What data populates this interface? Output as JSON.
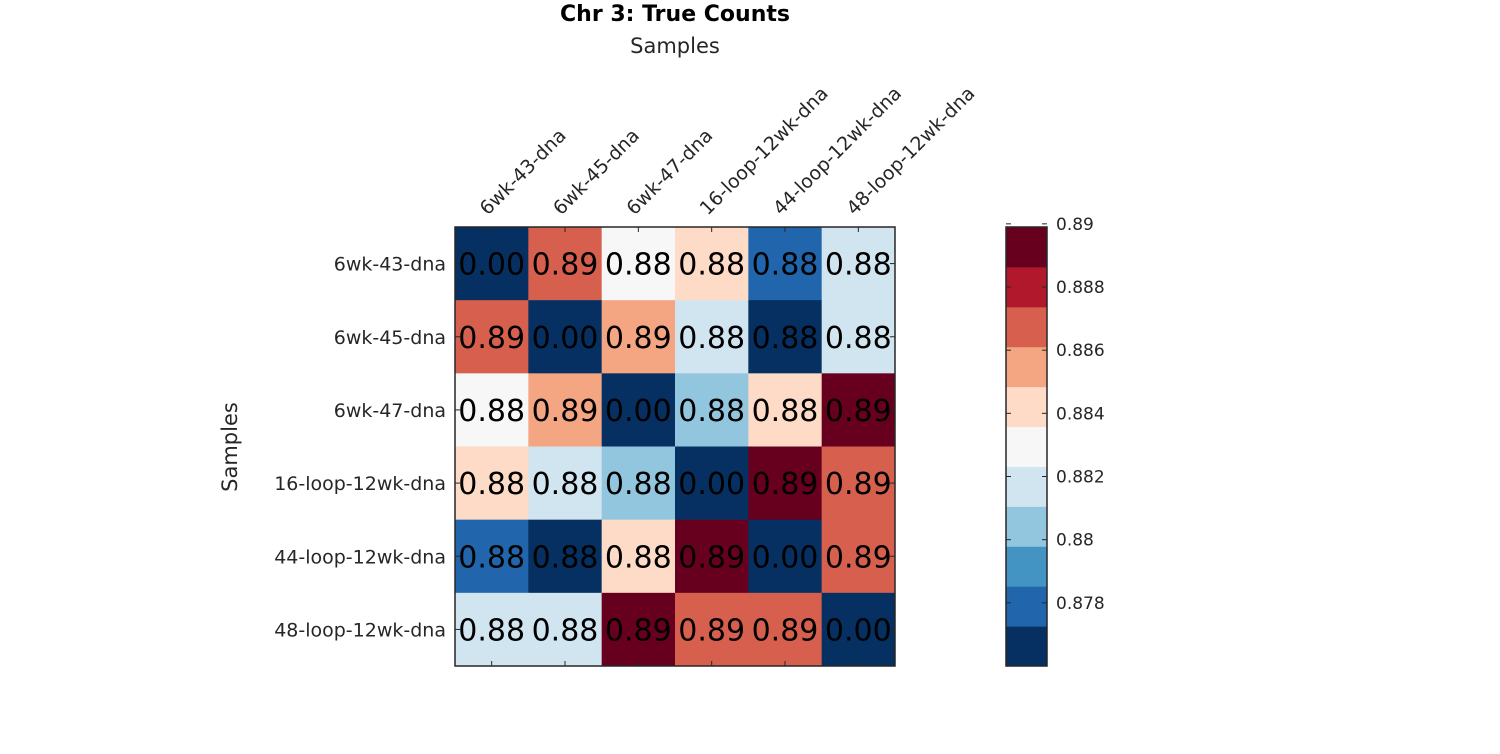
{
  "chart_data": {
    "type": "heatmap",
    "title": "Chr 3: True Counts",
    "xlabel": "Samples",
    "ylabel": "Samples",
    "x_categories": [
      "6wk-43-dna",
      "6wk-45-dna",
      "6wk-47-dna",
      "16-loop-12wk-dna",
      "44-loop-12wk-dna",
      "48-loop-12wk-dna"
    ],
    "y_categories": [
      "6wk-43-dna",
      "6wk-45-dna",
      "6wk-47-dna",
      "16-loop-12wk-dna",
      "44-loop-12wk-dna",
      "48-loop-12wk-dna"
    ],
    "values": [
      [
        0.0,
        0.887,
        0.8828,
        0.884,
        0.8778,
        0.8818
      ],
      [
        0.887,
        0.0,
        0.8856,
        0.8816,
        0.8762,
        0.8816
      ],
      [
        0.8828,
        0.8856,
        0.0,
        0.8806,
        0.884,
        0.8895
      ],
      [
        0.884,
        0.8816,
        0.8806,
        0.0,
        0.8895,
        0.887
      ],
      [
        0.8778,
        0.8762,
        0.884,
        0.8895,
        0.0,
        0.887
      ],
      [
        0.8818,
        0.8816,
        0.8895,
        0.887,
        0.887,
        0.0
      ]
    ],
    "cell_labels": [
      [
        "0.00",
        "0.89",
        "0.88",
        "0.88",
        "0.88",
        "0.88"
      ],
      [
        "0.89",
        "0.00",
        "0.89",
        "0.88",
        "0.88",
        "0.88"
      ],
      [
        "0.88",
        "0.89",
        "0.00",
        "0.88",
        "0.88",
        "0.89"
      ],
      [
        "0.88",
        "0.88",
        "0.88",
        "0.00",
        "0.89",
        "0.89"
      ],
      [
        "0.88",
        "0.88",
        "0.88",
        "0.89",
        "0.00",
        "0.89"
      ],
      [
        "0.88",
        "0.88",
        "0.89",
        "0.89",
        "0.89",
        "0.00"
      ]
    ],
    "colorbar": {
      "range": [
        0.876,
        0.8899
      ],
      "ticks": [
        0.878,
        0.88,
        0.882,
        0.884,
        0.886,
        0.888,
        0.89
      ],
      "tick_labels": [
        "0.878",
        "0.88",
        "0.882",
        "0.884",
        "0.886",
        "0.888",
        "0.89"
      ],
      "colors": [
        "#053061",
        "#2166ac",
        "#4393c3",
        "#92c5de",
        "#d1e5f0",
        "#f7f7f7",
        "#fddbc7",
        "#f4a582",
        "#d6604d",
        "#b2182b",
        "#67001f"
      ]
    },
    "grid": false,
    "legend": "colorbar-right"
  }
}
